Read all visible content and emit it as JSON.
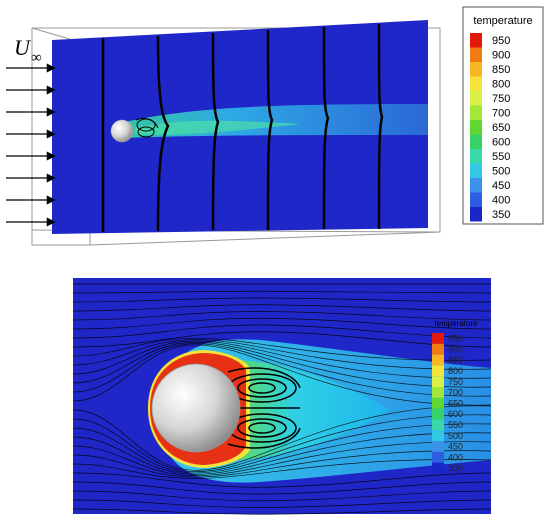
{
  "top_panel": {
    "freestream_label_main": "U",
    "freestream_label_sub": "∞",
    "icons": [
      "sphere-icon",
      "inflow-arrow-icon"
    ]
  },
  "legend_top": {
    "title": "temperature",
    "values": [
      "950",
      "900",
      "850",
      "800",
      "750",
      "700",
      "650",
      "600",
      "550",
      "500",
      "450",
      "400",
      "350"
    ],
    "colors": [
      "#e21a0d",
      "#f07a14",
      "#f9b624",
      "#f4e33b",
      "#d9f047",
      "#a3e63c",
      "#61d734",
      "#37d267",
      "#39d9a7",
      "#33c9e6",
      "#3c92ea",
      "#2b5fe0",
      "#1a26c8"
    ]
  },
  "legend_bottom": {
    "title": "temperature",
    "values": [
      "950",
      "900",
      "850",
      "800",
      "750",
      "700",
      "650",
      "600",
      "550",
      "500",
      "450",
      "400",
      "350"
    ]
  }
}
